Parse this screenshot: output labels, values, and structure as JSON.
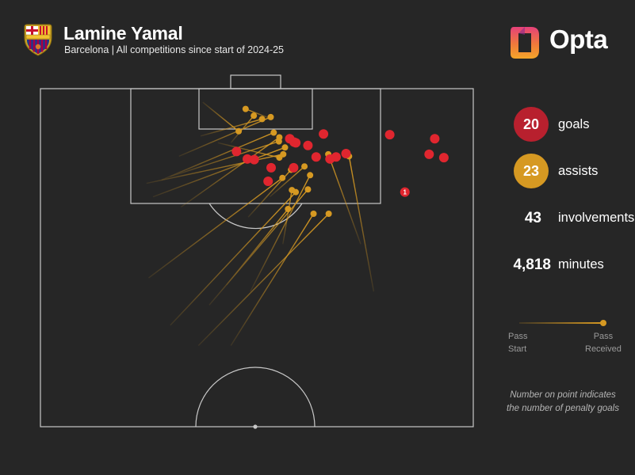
{
  "header": {
    "title": "Lamine Yamal",
    "subtitle": "Barcelona | All competitions since start of 2024-25",
    "crest_icon": "fc-barcelona-crest-icon",
    "brand": "Opta"
  },
  "stats": {
    "goals": {
      "value": "20",
      "label": "goals",
      "color": "#b8202e"
    },
    "assists": {
      "value": "23",
      "label": "assists",
      "color": "#d69922"
    },
    "involvements": {
      "value": "43",
      "label": "involvements"
    },
    "minutes": {
      "value": "4,818",
      "label": "minutes"
    }
  },
  "legend": {
    "start_line1": "Pass",
    "start_line2": "Start",
    "end_line1": "Pass",
    "end_line2": "Received"
  },
  "note": {
    "line1": "Number on point indicates",
    "line2": "the number of penalty goals"
  },
  "colors": {
    "background": "#262626",
    "goal": "#e0262f",
    "assist": "#d69922",
    "pitch_line": "#c8c8c8"
  },
  "chart_data": {
    "type": "scatter",
    "title": "Lamine Yamal",
    "goals": [
      {
        "x": 84.7,
        "y": 84.2,
        "penalty_goals": 1
      },
      {
        "x": 89.8,
        "y": 93.2
      },
      {
        "x": 90.3,
        "y": 89.8
      },
      {
        "x": 92.6,
        "y": 91.1
      },
      {
        "x": 93.2,
        "y": 80.7
      },
      {
        "x": 93.3,
        "y": 65.4
      },
      {
        "x": 92.0,
        "y": 59.0
      },
      {
        "x": 92.1,
        "y": 58.6
      },
      {
        "x": 92.6,
        "y": 57.6
      },
      {
        "x": 90.7,
        "y": 45.3
      },
      {
        "x": 89.6,
        "y": 47.8
      },
      {
        "x": 89.5,
        "y": 49.4
      },
      {
        "x": 91.6,
        "y": 61.8
      },
      {
        "x": 89.9,
        "y": 63.7
      },
      {
        "x": 89.6,
        "y": 66.9
      },
      {
        "x": 89.9,
        "y": 68.3
      },
      {
        "x": 90.4,
        "y": 70.6
      },
      {
        "x": 88.3,
        "y": 58.5
      },
      {
        "x": 88.3,
        "y": 53.3
      },
      {
        "x": 86.3,
        "y": 52.6
      }
    ],
    "assists": [
      {
        "sx": 95.5,
        "sy": 53.5,
        "ex": 97.0,
        "ey": 47.4
      },
      {
        "sx": 92.0,
        "sy": 44.0,
        "ex": 96.0,
        "ey": 49.3
      },
      {
        "sx": 93.0,
        "sy": 37.0,
        "ex": 95.5,
        "ey": 51.2
      },
      {
        "sx": 90.0,
        "sy": 32.0,
        "ex": 95.8,
        "ey": 53.2
      },
      {
        "sx": 86.5,
        "sy": 28.0,
        "ex": 93.5,
        "ey": 53.9
      },
      {
        "sx": 82.5,
        "sy": 32.5,
        "ex": 92.8,
        "ey": 55.2
      },
      {
        "sx": 87.0,
        "sy": 30.0,
        "ex": 92.2,
        "ey": 55.1
      },
      {
        "sx": 84.0,
        "sy": 26.0,
        "ex": 91.3,
        "ey": 56.5
      },
      {
        "sx": 86.0,
        "sy": 24.5,
        "ex": 90.3,
        "ey": 56.1
      },
      {
        "sx": 92.0,
        "sy": 41.0,
        "ex": 89.8,
        "ey": 55.2
      },
      {
        "sx": 98.0,
        "sy": 37.5,
        "ex": 93.7,
        "ey": 45.8
      },
      {
        "sx": 77.0,
        "sy": 74.0,
        "ex": 90.3,
        "ey": 66.5
      },
      {
        "sx": 70.0,
        "sy": 77.0,
        "ex": 90.0,
        "ey": 71.3
      },
      {
        "sx": 72.0,
        "sy": 25.0,
        "ex": 86.8,
        "ey": 55.9
      },
      {
        "sx": 68.0,
        "sy": 39.0,
        "ex": 85.1,
        "ey": 61.8
      },
      {
        "sx": 65.0,
        "sy": 30.0,
        "ex": 84.7,
        "ey": 59.0
      },
      {
        "sx": 62.0,
        "sy": 36.5,
        "ex": 81.5,
        "ey": 66.6
      },
      {
        "sx": 62.0,
        "sy": 44.0,
        "ex": 81.5,
        "ey": 63.1
      },
      {
        "sx": 71.0,
        "sy": 43.0,
        "ex": 82.2,
        "ey": 57.2
      },
      {
        "sx": 81.0,
        "sy": 48.0,
        "ex": 88.0,
        "ey": 57.9
      },
      {
        "sx": 77.0,
        "sy": 56.0,
        "ex": 85.0,
        "ey": 58.1
      },
      {
        "sx": 84.0,
        "sy": 53.0,
        "ex": 88.5,
        "ey": 61.0
      },
      {
        "sx": 70.0,
        "sy": 48.5,
        "ex": 87.2,
        "ey": 62.3
      }
    ]
  }
}
